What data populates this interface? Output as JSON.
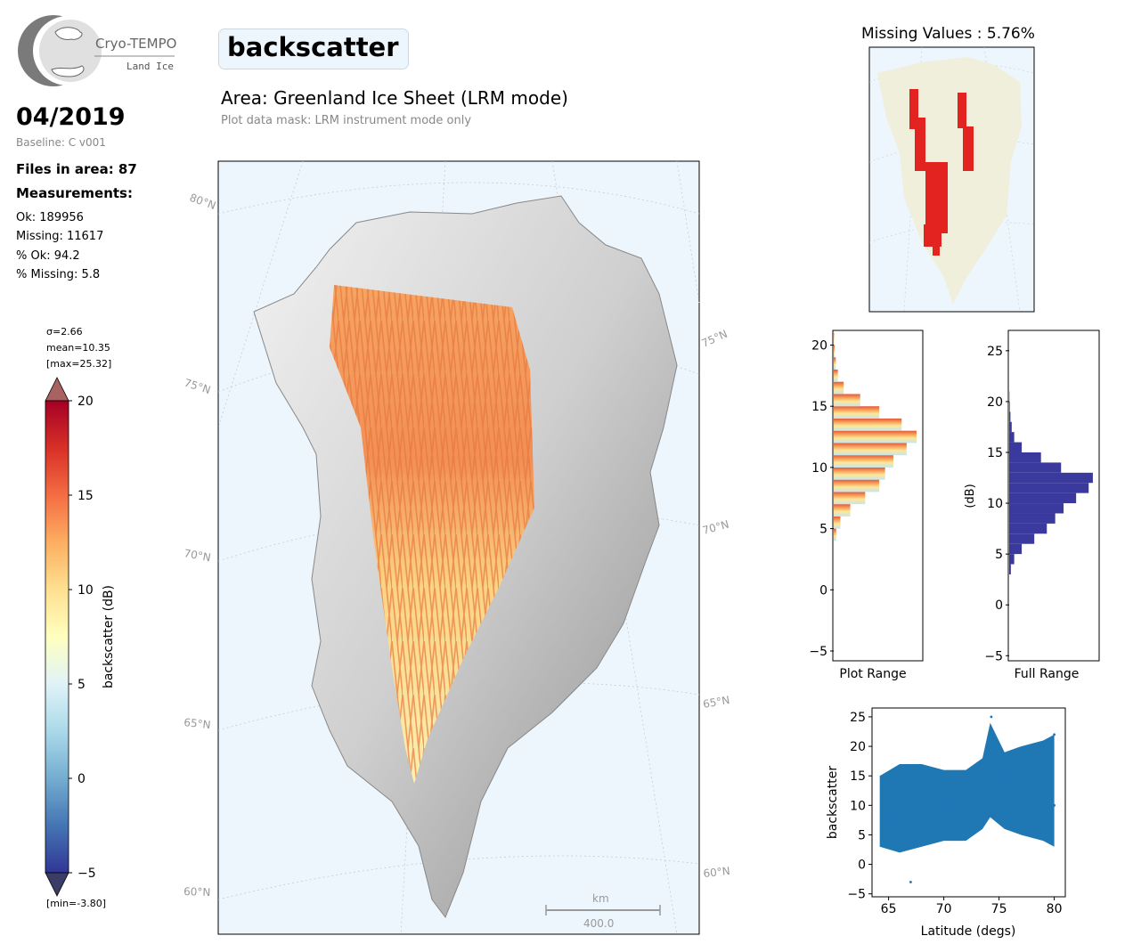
{
  "logo": {
    "name": "Cryo-TEMPO",
    "subtitle": "Land Ice"
  },
  "header": {
    "date": "04/2019",
    "baseline": "Baseline: C v001",
    "title": "backscatter",
    "area": "Area: Greenland Ice Sheet (LRM mode)",
    "mask_note": "Plot data mask: LRM instrument mode only"
  },
  "stats": {
    "files": "Files in area: 87",
    "measurements_heading": "Measurements:",
    "ok": "Ok: 189956",
    "missing": "Missing: 11617",
    "pct_ok": "% Ok: 94.2",
    "pct_missing": "% Missing: 5.8"
  },
  "colorbar": {
    "sigma": "σ=2.66",
    "mean": "mean=10.35",
    "max": "[max=25.32]",
    "min": "[min=-3.80]",
    "label": "backscatter (dB)",
    "ticks": [
      "20",
      "15",
      "10",
      "5",
      "0",
      "−5"
    ]
  },
  "map": {
    "lat_labels_left": [
      "80°N",
      "75°N",
      "70°N",
      "65°N",
      "60°N"
    ],
    "lat_labels_right": [
      "75°N",
      "70°N",
      "65°N",
      "60°N"
    ],
    "scale_unit": "km",
    "scale_value": "400.0"
  },
  "missing_panel": {
    "title": "Missing Values : 5.76%"
  },
  "colors": {
    "ocean": "#eef6fd",
    "land_inset": "#efefdc",
    "missing_points": "#e00000",
    "hist_full": "#3a3a9e",
    "scatter": "#1f77b4"
  },
  "chart_data": [
    {
      "type": "bar",
      "orientation": "horizontal",
      "title": "",
      "xlabel": "Plot Range",
      "ylabel": "",
      "ylim": [
        -5.8,
        21.2
      ],
      "ytick_labels": [
        "20",
        "15",
        "10",
        "5",
        "0",
        "−5"
      ],
      "bins": [
        4,
        5,
        6,
        7,
        8,
        9,
        10,
        11,
        12,
        13,
        14,
        15,
        16,
        17,
        18,
        19,
        20
      ],
      "values": [
        0.03,
        0.08,
        0.2,
        0.38,
        0.55,
        0.62,
        0.72,
        0.88,
        1.0,
        0.82,
        0.55,
        0.32,
        0.12,
        0.05,
        0.025,
        0.012,
        0.005
      ]
    },
    {
      "type": "bar",
      "orientation": "horizontal",
      "title": "",
      "xlabel": "Full Range",
      "ylabel": "(dB)",
      "ylim": [
        -5.5,
        27
      ],
      "ytick_labels": [
        "25",
        "20",
        "15",
        "10",
        "5",
        "0",
        "−5"
      ],
      "bins": [
        3,
        4,
        5,
        6,
        7,
        8,
        9,
        10,
        11,
        12,
        13,
        14,
        15,
        16,
        17,
        18,
        19,
        20
      ],
      "values": [
        0.02,
        0.06,
        0.15,
        0.3,
        0.45,
        0.55,
        0.65,
        0.8,
        0.95,
        1.0,
        0.62,
        0.38,
        0.15,
        0.06,
        0.03,
        0.015,
        0.007,
        0.003
      ]
    },
    {
      "type": "scatter",
      "title": "",
      "xlabel": "Latitude (degs)",
      "ylabel": "backscatter",
      "xlim": [
        63.5,
        81
      ],
      "ylim": [
        -5.5,
        26.5
      ],
      "xtick_labels": [
        "65",
        "70",
        "75",
        "80"
      ],
      "ytick_labels": [
        "25",
        "20",
        "15",
        "10",
        "5",
        "0",
        "−5"
      ],
      "points": [
        [
          64.5,
          9
        ],
        [
          65,
          8
        ],
        [
          66,
          12
        ],
        [
          67,
          -3
        ],
        [
          68,
          10
        ],
        [
          69,
          7
        ],
        [
          70,
          11
        ],
        [
          71,
          10
        ],
        [
          72,
          9
        ],
        [
          73,
          13
        ],
        [
          74,
          20
        ],
        [
          74.3,
          25
        ],
        [
          75,
          14
        ],
        [
          76,
          12
        ],
        [
          77,
          16
        ],
        [
          78,
          11
        ],
        [
          79,
          20
        ],
        [
          80,
          10
        ],
        [
          80,
          22
        ]
      ]
    }
  ]
}
